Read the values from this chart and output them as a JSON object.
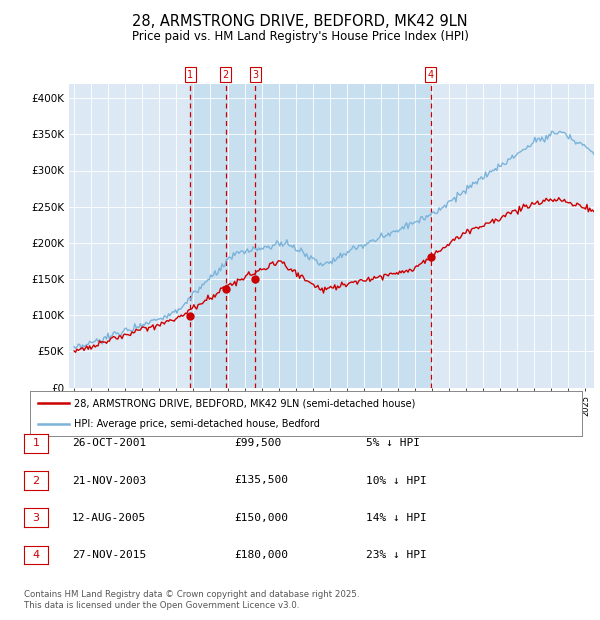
{
  "title": "28, ARMSTRONG DRIVE, BEDFORD, MK42 9LN",
  "subtitle": "Price paid vs. HM Land Registry's House Price Index (HPI)",
  "title_fontsize": 10.5,
  "subtitle_fontsize": 8.5,
  "background_color": "#ffffff",
  "plot_bg_color": "#dce9f5",
  "ylim": [
    0,
    420000
  ],
  "yticks": [
    0,
    50000,
    100000,
    150000,
    200000,
    250000,
    300000,
    350000,
    400000
  ],
  "ytick_labels": [
    "£0",
    "£50K",
    "£100K",
    "£150K",
    "£200K",
    "£250K",
    "£300K",
    "£350K",
    "£400K"
  ],
  "hpi_color": "#7bb3d9",
  "price_color": "#cc0000",
  "dashed_line_color": "#cc0000",
  "legend_house_label": "28, ARMSTRONG DRIVE, BEDFORD, MK42 9LN (semi-detached house)",
  "legend_hpi_label": "HPI: Average price, semi-detached house, Bedford",
  "transactions": [
    {
      "num": 1,
      "date": "26-OCT-2001",
      "price": 99500,
      "year": 2001.82
    },
    {
      "num": 2,
      "date": "21-NOV-2003",
      "price": 135500,
      "year": 2003.89
    },
    {
      "num": 3,
      "date": "12-AUG-2005",
      "price": 150000,
      "year": 2005.62
    },
    {
      "num": 4,
      "date": "27-NOV-2015",
      "price": 180000,
      "year": 2015.91
    }
  ],
  "table_rows": [
    {
      "num": 1,
      "date": "26-OCT-2001",
      "price": "£99,500",
      "pct": "5% ↓ HPI"
    },
    {
      "num": 2,
      "date": "21-NOV-2003",
      "price": "£135,500",
      "pct": "10% ↓ HPI"
    },
    {
      "num": 3,
      "date": "12-AUG-2005",
      "price": "£150,000",
      "pct": "14% ↓ HPI"
    },
    {
      "num": 4,
      "date": "27-NOV-2015",
      "price": "£180,000",
      "pct": "23% ↓ HPI"
    }
  ],
  "footer": "Contains HM Land Registry data © Crown copyright and database right 2025.\nThis data is licensed under the Open Government Licence v3.0.",
  "x_start_year": 1995,
  "x_end_year": 2025
}
